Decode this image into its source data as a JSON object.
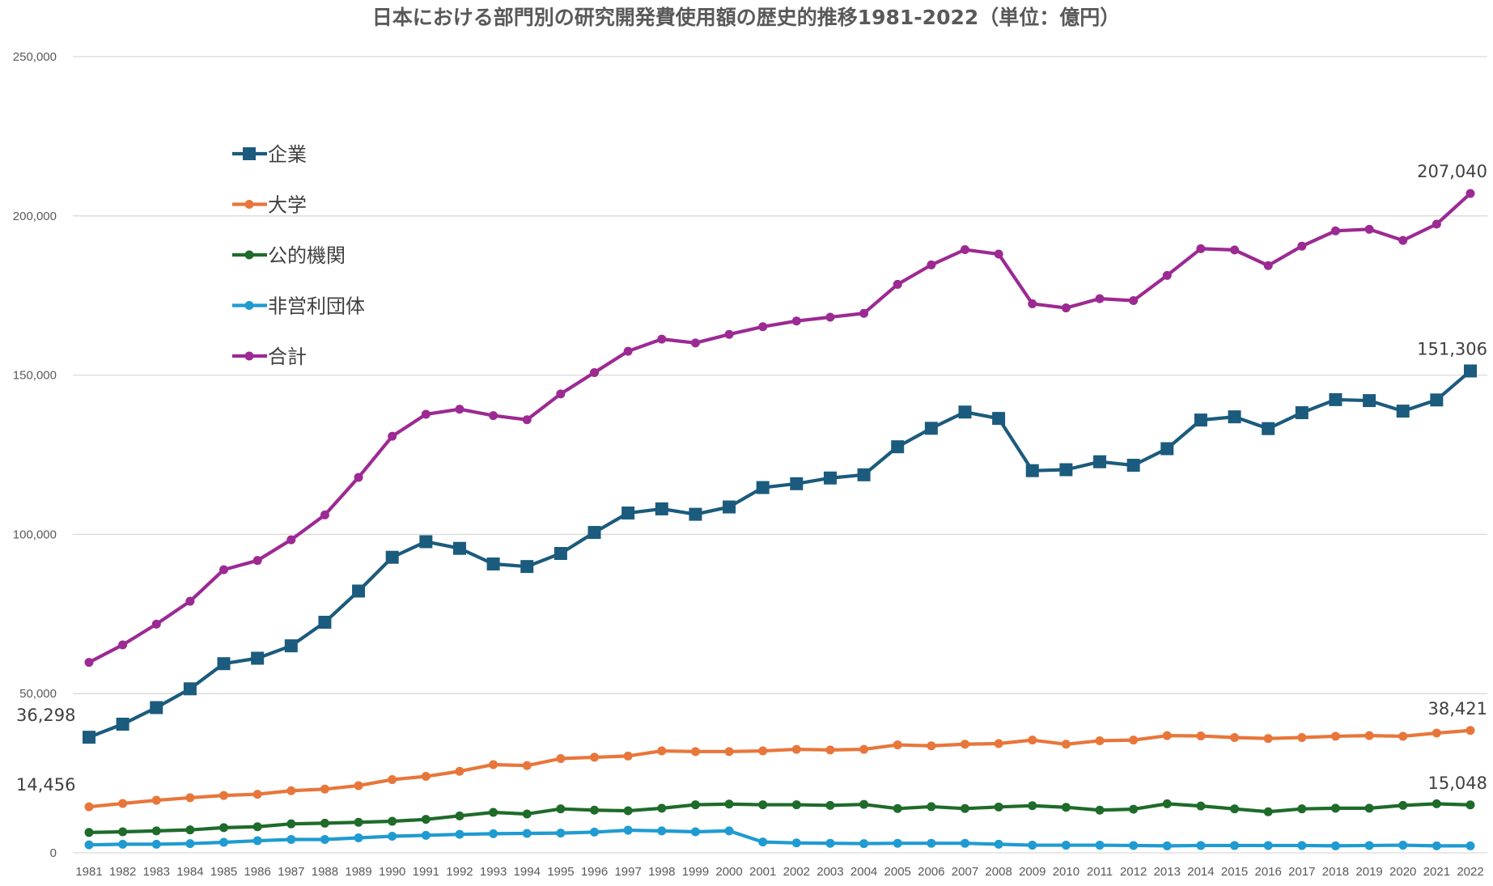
{
  "chart_data": {
    "type": "line",
    "title": "日本における部門別の研究開発費使用額の歴史的推移1981-2022（単位：億円）",
    "xlabel": "",
    "ylabel": "",
    "ylim": [
      0,
      250000
    ],
    "yticks": [
      0,
      50000,
      100000,
      150000,
      200000,
      250000
    ],
    "ytick_labels": [
      "0",
      "50,000",
      "100,000",
      "150,000",
      "200,000",
      "250,000"
    ],
    "grid": true,
    "legend_position": "upper-left",
    "categories": [
      "1981",
      "1982",
      "1983",
      "1984",
      "1985",
      "1986",
      "1987",
      "1988",
      "1989",
      "1990",
      "1991",
      "1992",
      "1993",
      "1994",
      "1995",
      "1996",
      "1997",
      "1998",
      "1999",
      "2000",
      "2001",
      "2002",
      "2003",
      "2004",
      "2005",
      "2006",
      "2007",
      "2008",
      "2009",
      "2010",
      "2011",
      "2012",
      "2013",
      "2014",
      "2015",
      "2016",
      "2017",
      "2018",
      "2019",
      "2020",
      "2021",
      "2022"
    ],
    "series": [
      {
        "name": "企業",
        "color": "#1b5b7d",
        "marker": "square",
        "values": [
          36298,
          40400,
          45600,
          51500,
          59400,
          61100,
          65000,
          72400,
          82200,
          92800,
          97700,
          95600,
          90700,
          89900,
          94000,
          100600,
          106700,
          108000,
          106300,
          108600,
          114700,
          115900,
          117700,
          118700,
          127500,
          133300,
          138400,
          136400,
          120000,
          120300,
          122800,
          121700,
          126900,
          135900,
          136900,
          133200,
          138200,
          142300,
          142000,
          138700,
          142200,
          151306
        ]
      },
      {
        "name": "大学",
        "color": "#e8763a",
        "marker": "circle",
        "values": [
          14456,
          15500,
          16500,
          17300,
          18000,
          18400,
          19500,
          20000,
          21100,
          23000,
          24000,
          25600,
          27700,
          27400,
          29600,
          30000,
          30400,
          32000,
          31800,
          31800,
          32000,
          32500,
          32300,
          32500,
          33900,
          33600,
          34100,
          34300,
          35400,
          34100,
          35200,
          35400,
          36800,
          36700,
          36200,
          35900,
          36200,
          36600,
          36800,
          36600,
          37600,
          38421
        ]
      },
      {
        "name": "公的機関",
        "color": "#1e6b2a",
        "marker": "circle",
        "values": [
          6400,
          6600,
          6900,
          7200,
          7900,
          8200,
          9100,
          9300,
          9600,
          9900,
          10500,
          11600,
          12700,
          12200,
          13800,
          13400,
          13200,
          14000,
          15100,
          15300,
          15100,
          15100,
          14900,
          15200,
          13900,
          14500,
          13900,
          14400,
          14800,
          14300,
          13400,
          13700,
          15400,
          14700,
          13800,
          12900,
          13800,
          14000,
          14000,
          14900,
          15400,
          15048
        ]
      },
      {
        "name": "非営利団体",
        "color": "#1f9bd1",
        "marker": "circle",
        "values": [
          2500,
          2700,
          2700,
          2900,
          3300,
          3800,
          4200,
          4200,
          4700,
          5200,
          5500,
          5800,
          6000,
          6100,
          6200,
          6500,
          7100,
          6900,
          6600,
          6900,
          3400,
          3100,
          3000,
          2900,
          3000,
          3000,
          3000,
          2700,
          2400,
          2400,
          2400,
          2300,
          2200,
          2300,
          2300,
          2300,
          2300,
          2200,
          2300,
          2400,
          2200,
          2200
        ]
      },
      {
        "name": "合計",
        "color": "#9c2a93",
        "marker": "circle",
        "values": [
          59800,
          65300,
          71800,
          79000,
          88900,
          91800,
          98300,
          106100,
          117900,
          130800,
          137700,
          139300,
          137300,
          136000,
          144100,
          150800,
          157500,
          161300,
          160100,
          162800,
          165200,
          167000,
          168200,
          169400,
          178500,
          184600,
          189400,
          188000,
          172400,
          171100,
          174000,
          173400,
          181300,
          189700,
          189300,
          184400,
          190500,
          195300,
          195800,
          192300,
          197400,
          207040
        ]
      }
    ],
    "data_labels": [
      {
        "series": "企業",
        "year": "1981",
        "text": "36,298"
      },
      {
        "series": "大学",
        "year": "1981",
        "text": "14,456"
      },
      {
        "series": "企業",
        "year": "2022",
        "text": "151,306"
      },
      {
        "series": "大学",
        "year": "2022",
        "text": "38,421"
      },
      {
        "series": "公的機関",
        "year": "2022",
        "text": "15,048"
      },
      {
        "series": "合計",
        "year": "2022",
        "text": "207,040"
      }
    ]
  }
}
